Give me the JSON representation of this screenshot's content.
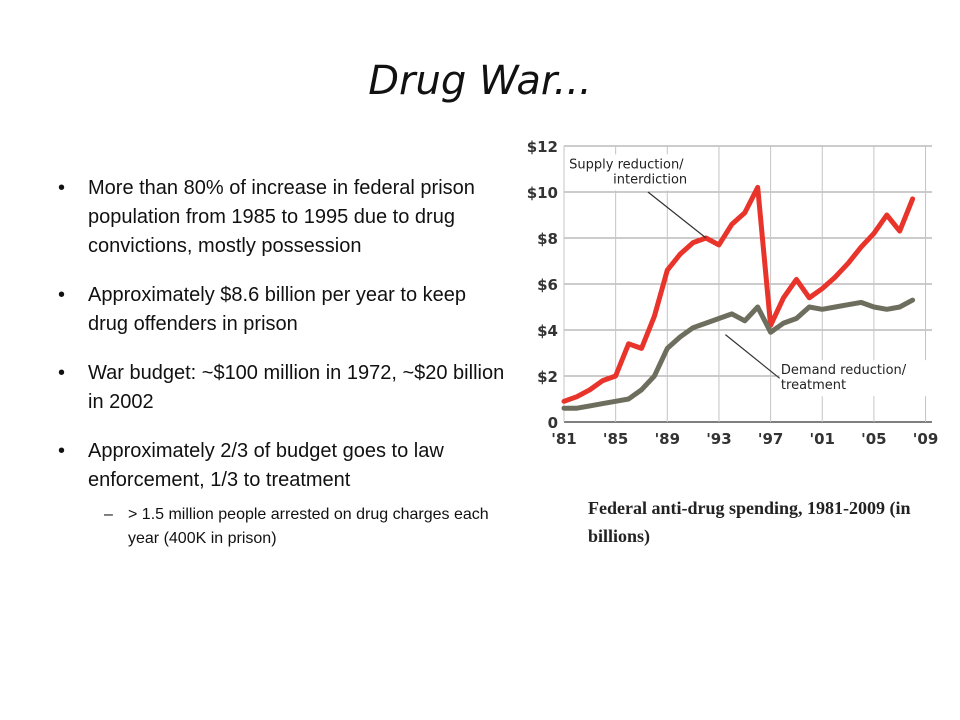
{
  "slide": {
    "title": "Drug War...",
    "bullets": [
      "More than 80% of increase in federal prison population from 1985 to 1995 due to drug convictions, mostly possession",
      "Approximately $8.6 billion per year to keep drug offenders in prison",
      "War budget:  ~$100 million in 1972, ~$20 billion in 2002",
      "Approximately 2/3 of budget goes to law enforcement, 1/3 to treatment"
    ],
    "sub_bullet": "> 1.5 million people arrested on drug charges each year (400K in prison)",
    "bullet_symbol": "•",
    "dash_symbol": "–",
    "caption": "Federal anti-drug spending, 1981-2009 (in billions)"
  },
  "chart_data": {
    "type": "line",
    "x": [
      1981,
      1982,
      1983,
      1984,
      1985,
      1986,
      1987,
      1988,
      1989,
      1990,
      1991,
      1992,
      1993,
      1994,
      1995,
      1996,
      1997,
      1998,
      1999,
      2000,
      2001,
      2002,
      2003,
      2004,
      2005,
      2006,
      2007,
      2008,
      2009
    ],
    "series": [
      {
        "name": "Supply reduction/ interdiction",
        "color": "#e8342a",
        "values": [
          0.9,
          1.1,
          1.4,
          1.8,
          2.0,
          3.4,
          3.2,
          4.6,
          6.6,
          7.3,
          7.8,
          8.0,
          7.7,
          8.6,
          9.1,
          10.2,
          4.2,
          5.4,
          6.2,
          5.4,
          5.8,
          6.3,
          6.9,
          7.6,
          8.2,
          9.0,
          8.3,
          9.7,
          null
        ]
      },
      {
        "name": "Demand reduction/ treatment",
        "color": "#6e6e5e",
        "values": [
          0.6,
          0.6,
          0.7,
          0.8,
          0.9,
          1.0,
          1.4,
          2.0,
          3.2,
          3.7,
          4.1,
          4.3,
          4.5,
          4.7,
          4.4,
          5.0,
          3.9,
          4.3,
          4.5,
          5.0,
          4.9,
          5.0,
          5.1,
          5.2,
          5.0,
          4.9,
          5.0,
          5.3,
          null
        ]
      }
    ],
    "y_ticks": [
      "0",
      "$2",
      "$4",
      "$6",
      "$8",
      "$10",
      "$12"
    ],
    "y_tick_values": [
      0,
      2,
      4,
      6,
      8,
      10,
      12
    ],
    "x_ticks": [
      "'81",
      "'85",
      "'89",
      "'93",
      "'97",
      "'01",
      "'05",
      "'09"
    ],
    "x_tick_values": [
      1981,
      1985,
      1989,
      1993,
      1997,
      2001,
      2005,
      2009
    ],
    "ylim": [
      0,
      12
    ],
    "xlim": [
      1981,
      2009.5
    ],
    "grid": true,
    "annotations": {
      "supply": [
        "Supply reduction/",
        "interdiction"
      ],
      "demand": [
        "Demand reduction/",
        "treatment"
      ]
    }
  }
}
